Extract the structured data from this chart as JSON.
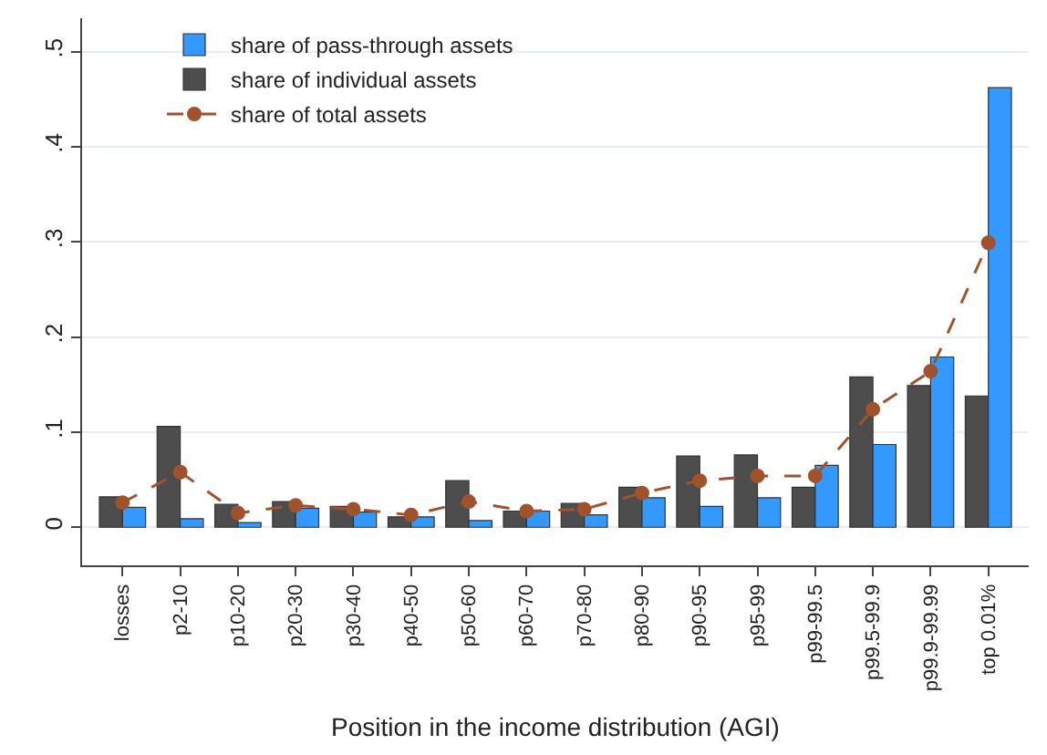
{
  "chart_data": {
    "type": "bar",
    "xlabel": "Position in the income distribution (AGI)",
    "categories": [
      "losses",
      "p2-10",
      "p10-20",
      "p20-30",
      "p30-40",
      "p40-50",
      "p50-60",
      "p60-70",
      "p70-80",
      "p80-90",
      "p90-95",
      "p95-99",
      "p99-99.5",
      "p99.5-99.9",
      "p99.9-99.99",
      "top 0.01%"
    ],
    "series": [
      {
        "name": "share of individual assets",
        "color": "#4d4d4d",
        "values": [
          0.032,
          0.106,
          0.024,
          0.027,
          0.022,
          0.011,
          0.049,
          0.017,
          0.025,
          0.042,
          0.075,
          0.076,
          0.042,
          0.158,
          0.149,
          0.138
        ]
      },
      {
        "name": "share of pass-through assets",
        "color": "#3399ff",
        "values": [
          0.021,
          0.009,
          0.005,
          0.02,
          0.016,
          0.011,
          0.007,
          0.017,
          0.013,
          0.031,
          0.022,
          0.031,
          0.065,
          0.087,
          0.179,
          0.462
        ]
      },
      {
        "name": "share of total assets",
        "color": "#a0522d",
        "type": "line",
        "marker": "circle",
        "line_style": "dashed",
        "values": [
          0.026,
          0.058,
          0.015,
          0.023,
          0.019,
          0.013,
          0.027,
          0.017,
          0.019,
          0.036,
          0.049,
          0.054,
          0.054,
          0.124,
          0.164,
          0.299
        ]
      }
    ],
    "ylim": [
      -0.04,
      0.535
    ],
    "yticks": [
      0,
      {
        "value": 0.1,
        "label": ".1"
      },
      {
        "value": 0.2,
        "label": ".2"
      },
      {
        "value": 0.3,
        "label": ".3"
      },
      {
        "value": 0.4,
        "label": ".4"
      },
      {
        "value": 0.5,
        "label": ".5"
      }
    ],
    "grid": "y",
    "legend": "top left"
  }
}
